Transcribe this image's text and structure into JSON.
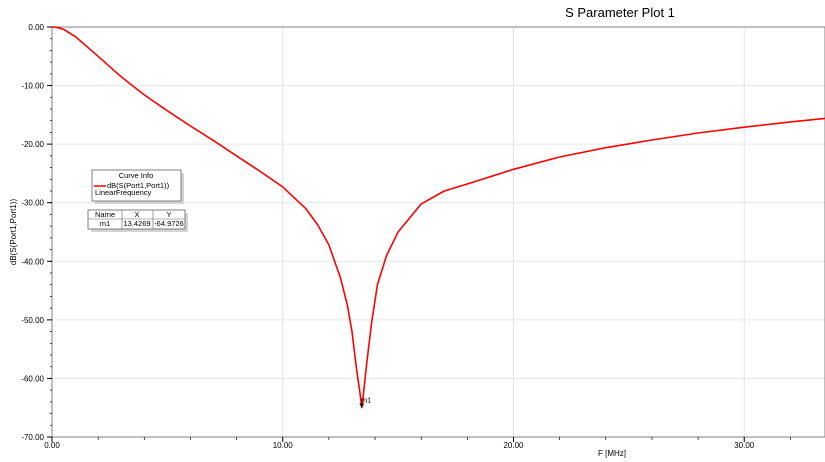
{
  "chart_data": {
    "type": "line",
    "title": "S Parameter Plot 1",
    "xlabel": "F [MHz]",
    "ylabel": "dB(S(Port1,Port1))",
    "xlim": [
      0,
      33.5
    ],
    "ylim": [
      -70,
      0
    ],
    "x_ticks": [
      0,
      10,
      20,
      30
    ],
    "x_tick_labels": [
      "0.00",
      "10.00",
      "20.00",
      "30.00"
    ],
    "y_ticks": [
      0,
      -10,
      -20,
      -30,
      -40,
      -50,
      -60,
      -70
    ],
    "y_tick_labels": [
      "0.00",
      "-10.00",
      "-20.00",
      "-30.00",
      "-40.00",
      "-50.00",
      "-60.00",
      "-70.00"
    ],
    "grid": true,
    "series": [
      {
        "name": "dB(S(Port1,Port1))",
        "color": "#ff0000",
        "x": [
          0,
          0.2,
          0.5,
          1,
          1.5,
          2,
          3,
          4,
          5,
          6,
          7,
          8,
          9,
          10,
          11,
          11.5,
          12,
          12.5,
          12.8,
          13.0,
          13.2,
          13.35,
          13.4269,
          13.5,
          13.65,
          13.85,
          14.1,
          14.5,
          15,
          16,
          17,
          18,
          20,
          22,
          24,
          26,
          28,
          30,
          32,
          33.5
        ],
        "y": [
          0,
          -0.05,
          -0.4,
          -1.6,
          -3.3,
          -5,
          -8.5,
          -11.6,
          -14.3,
          -16.9,
          -19.4,
          -22,
          -24.6,
          -27.3,
          -31,
          -33.7,
          -37.2,
          -42.8,
          -47.5,
          -52,
          -58.5,
          -62.5,
          -64.9726,
          -62.5,
          -57,
          -50.5,
          -44,
          -39,
          -35,
          -30.2,
          -28,
          -26.8,
          -24.3,
          -22.2,
          -20.6,
          -19.3,
          -18.1,
          -17.1,
          -16.2,
          -15.6
        ]
      }
    ],
    "legend": {
      "title": "Curve Info",
      "entries": [
        {
          "label": "dB(S(Port1,Port1))",
          "sublabel": "LinearFrequency",
          "color": "#ff0000"
        }
      ],
      "placement": "left"
    },
    "markers": [
      {
        "name": "m1",
        "x": 13.4269,
        "y": -64.9726
      }
    ],
    "marker_table": {
      "headers": [
        "Name",
        "X",
        "Y"
      ],
      "rows": [
        [
          "m1",
          "13.4269",
          "-64.9726"
        ]
      ]
    }
  }
}
